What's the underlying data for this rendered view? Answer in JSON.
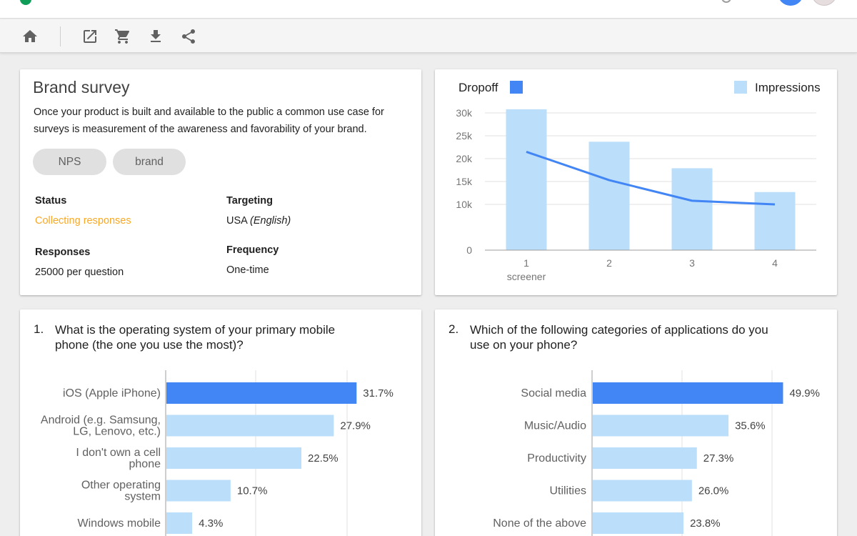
{
  "colors": {
    "dropoff": "#4285f4",
    "impressions": "#bbdefb",
    "status": "#f9a825",
    "chip_bg": "#e0e0e0"
  },
  "toolbar": {
    "icons": [
      "home-icon",
      "open-in-new-icon",
      "shopping-cart-icon",
      "download-icon",
      "share-icon"
    ]
  },
  "brand": {
    "title": "Brand survey",
    "description": "Once your product is built and available to the public a common use case for surveys is measurement of the awareness and favorability of your brand.",
    "tags": [
      "NPS",
      "brand"
    ],
    "status_label": "Status",
    "status_value": "Collecting responses",
    "targeting_label": "Targeting",
    "targeting_country": "USA",
    "targeting_language": "(English)",
    "responses_label": "Responses",
    "responses_value": "25000 per question",
    "frequency_label": "Frequency",
    "frequency_value": "One-time"
  },
  "chart_data": [
    {
      "type": "bar",
      "legend": [
        "Dropoff",
        "Impressions"
      ],
      "legend_placement": "top",
      "categories": [
        "1",
        "2",
        "3",
        "4"
      ],
      "category_sublabels": [
        "screener",
        "",
        "",
        ""
      ],
      "ylim": [
        0,
        30000
      ],
      "y_ticks": [
        0,
        10000,
        15000,
        20000,
        25000,
        30000
      ],
      "y_tick_labels": [
        "0",
        "10k",
        "15k",
        "20k",
        "25k",
        "30k"
      ],
      "grid": true,
      "series": [
        {
          "name": "Impressions",
          "type": "bar",
          "values": [
            30800,
            23700,
            17900,
            12700
          ]
        },
        {
          "name": "Dropoff",
          "type": "line",
          "values": [
            21500,
            15300,
            10800,
            10000
          ]
        }
      ]
    },
    {
      "type": "bar",
      "orientation": "horizontal",
      "title": "What is the operating system of your primary mobile phone (the one you use the most)?",
      "number": "1.",
      "categories": [
        "iOS (Apple iPhone)",
        "Android (e.g. Samsung, LG, Lenovo, etc.)",
        "I don't own a cell phone",
        "Other operating system",
        "Windows mobile"
      ],
      "category_lines": [
        [
          "iOS (Apple iPhone)"
        ],
        [
          "Android (e.g. Samsung,",
          "LG, Lenovo, etc.)"
        ],
        [
          "I don't own a cell",
          "phone"
        ],
        [
          "Other operating",
          "system"
        ],
        [
          "Windows mobile"
        ]
      ],
      "values": [
        31.7,
        27.9,
        22.5,
        10.7,
        4.3
      ],
      "value_labels": [
        "31.7%",
        "27.9%",
        "22.5%",
        "10.7%",
        "4.3%"
      ],
      "highlight_index": 0,
      "xlim": [
        0,
        40
      ],
      "grid": true
    },
    {
      "type": "bar",
      "orientation": "horizontal",
      "title": "Which of the following categories of applications do you use on your phone?",
      "number": "2.",
      "categories": [
        "Social media",
        "Music/Audio",
        "Productivity",
        "Utilities",
        "None of the above"
      ],
      "category_lines": [
        [
          "Social media"
        ],
        [
          "Music/Audio"
        ],
        [
          "Productivity"
        ],
        [
          "Utilities"
        ],
        [
          "None of the above"
        ]
      ],
      "values": [
        49.9,
        35.6,
        27.3,
        26.0,
        23.8
      ],
      "value_labels": [
        "49.9%",
        "35.6%",
        "27.3%",
        "26.0%",
        "23.8%"
      ],
      "highlight_index": 0,
      "xlim": [
        0,
        50
      ],
      "grid": true
    }
  ]
}
